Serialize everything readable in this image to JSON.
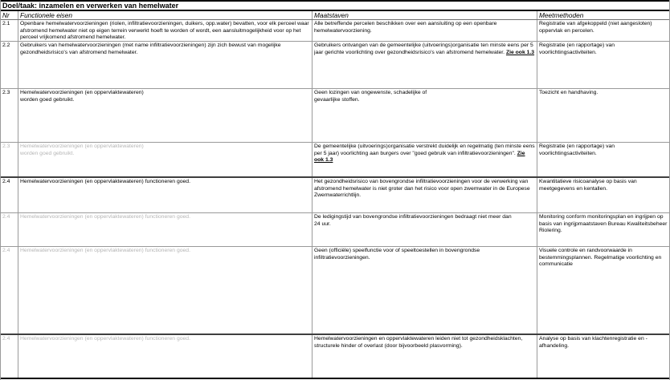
{
  "title": "Doel/taak: inzamelen en verwerken van hemelwater",
  "columns": {
    "nr": "Nr",
    "fe": "Functionele eisen",
    "maatstaf": "Maatstaven",
    "meetmethode": "Meetmethoden"
  },
  "colors": {
    "text": "#000000",
    "muted_text": "#b5b5b5",
    "grid_line": "#9a9a9a",
    "section_line": "#3f3f3f",
    "frame_line": "#000000",
    "background": "#ffffff"
  },
  "rows": [
    {
      "nr": "2.1",
      "gray": false,
      "fe": "Openbare hemelwatervoorzieningen (riolen, infiltratievoorzieningen, duikers, opp.water) bevatten, voor elk perceel waar afstromend hemelwater niet op eigen terrein verwerkt hoeft te worden of wordt, een aansluitmogelijkheid voor op het perceel vrijkomend afstromend hemelwater.",
      "maatstaf": "Alle betreffende percelen beschikken over een aansluiting op een openbare hemelwatervoorziening.",
      "maatstaf_link": "",
      "meetmethode": "Registratie van afgekoppeld (niet aangesloten)\noppervlak en percelen."
    },
    {
      "nr": "2.2",
      "gray": false,
      "fe": "Gebruikers van hemelwatervoorzieningen (met name infiltratievoorzieningen) zijn zich bewust van mogelijke gezondheidsrisico's van afstromend hemelwater.",
      "maatstaf": "Gebruikers ontvangen van de gemeentelijke (uitvoerings)organisatie ten minste eens per 5 jaar gerichte voorlichting over gezondheidsrisico's van afstromend hemelwater. ",
      "maatstaf_link": "Zie ook 1.3",
      "meetmethode": "Registratie (en rapportage) van\nvoorlichtingsactiviteiten."
    },
    {
      "nr": "2.3",
      "gray": false,
      "fe": "Hemelwatervoorzieningen (en oppervlaktewateren)\nworden goed gebruikt.",
      "maatstaf": "Geen lozingen van ongewenste, schadelijke of\ngevaarlijke stoffen.",
      "maatstaf_link": "",
      "meetmethode": "Toezicht en handhaving."
    },
    {
      "nr": "2.3",
      "gray": true,
      "fe": "Hemelwatervoorzieningen (en oppervlaktewateren)\nworden goed gebruikt.",
      "maatstaf": "De gemeentelijke (uitvoerings)organisatie verstrekt duidelijk en regelmatig (ten minste eens per 5 jaar) voorlichting aan burgers over \"goed gebruik van infiltratievoorzieningen\". ",
      "maatstaf_link": "Zie ook 1.3",
      "meetmethode": "Registratie (en rapportage) van\nvoorlichtingsactiviteiten."
    },
    {
      "nr": "2.4",
      "gray": false,
      "fe": "Hemelwatervoorzieningen (en oppervlaktewateren) functioneren goed.",
      "maatstaf": "Het gezondheidsrisico van bovengrondse infiltratievoorzieningen voor de verwerking van afstromend hemelwater is niet groter dan het risico voor open zwemwater in de Europese Zwemwaterrichtlijn.",
      "maatstaf_link": "",
      "meetmethode": "Kwantitatieve risicoanalyse op basis van\nmeetgegevens en kentallen."
    },
    {
      "nr": "2.4",
      "gray": true,
      "fe": "Hemelwatervoorzieningen (en oppervlaktewateren) functioneren goed.",
      "maatstaf": "De ledigingstijd van bovengrondse infiltratievoorzieningen bedraagt niet meer dan\n24 uur.",
      "maatstaf_link": "",
      "meetmethode": "Monitoring conform monitoringsplan en ingrijpen op basis van ingrijpmaatstaven Bureau Kwaliteitsbeheer Riolering."
    },
    {
      "nr": "2.4",
      "gray": true,
      "fe": "Hemelwatervoorzieningen (en oppervlaktewateren) functioneren goed.",
      "maatstaf": "Geen (officiële) speelfunctie voor of speeltoestellen in bovengrondse infiltratievoorzieningen.",
      "maatstaf_link": "",
      "meetmethode": "Visuele controle en randvoorwaarde in bestemmingsplannen. Regelmatige voorlichting en communicatie"
    },
    {
      "nr": "2.4",
      "gray": true,
      "fe": "Hemelwatervoorzieningen (en oppervlaktewateren) functioneren goed.",
      "maatstaf": "Hemelwatervoorzieningen en oppervlaktewateren leiden niet tot gezondheidsklachten, structurele hinder of overlast (door bijvoorbeeld plasvorming).",
      "maatstaf_link": "",
      "meetmethode": "Analyse op basis van klachtenregistratie en -\nafhandeling."
    }
  ]
}
